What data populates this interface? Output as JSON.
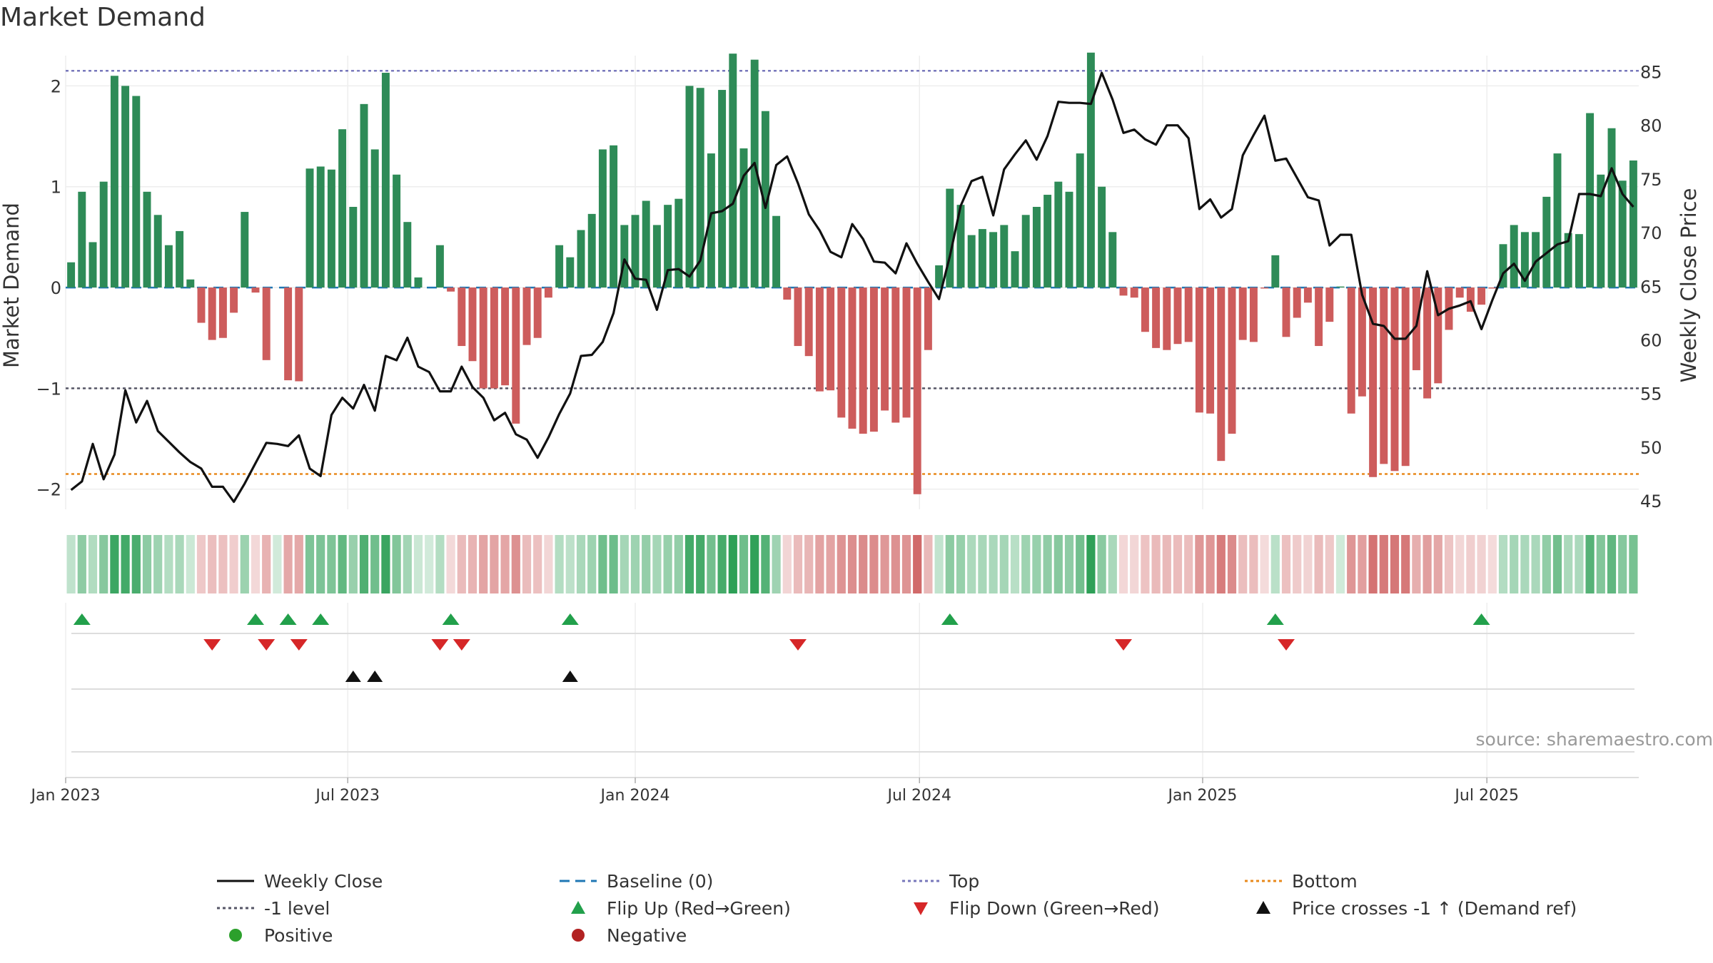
{
  "chart_data": {
    "type": "bar+line",
    "title": "Market Demand",
    "source": "source: sharemaestro.com",
    "ylabel_left": "Market Demand",
    "ylabel_right": "Weekly Close Price",
    "ylim_left": [
      -2.2,
      2.3
    ],
    "ylim_right": [
      44.2,
      86.5
    ],
    "yticks_left": [
      "−2",
      "−1",
      "0",
      "1",
      "2"
    ],
    "yticks_right": [
      "45",
      "50",
      "55",
      "60",
      "65",
      "70",
      "75",
      "80",
      "85"
    ],
    "xticks": [
      "Jan 2023",
      "Jul 2023",
      "Jan 2024",
      "Jul 2024",
      "Jan 2025",
      "Jul 2025"
    ],
    "reference_lines": {
      "top": 2.15,
      "minus1": -1,
      "bottom": -1.85,
      "baseline": 0
    },
    "weeks": 145,
    "demand": [
      0.25,
      0.95,
      0.45,
      1.05,
      2.1,
      2.0,
      1.9,
      0.95,
      0.72,
      0.42,
      0.56,
      0.08,
      -0.35,
      -0.52,
      -0.5,
      -0.25,
      0.75,
      -0.05,
      -0.72,
      0.0,
      -0.92,
      -0.93,
      1.18,
      1.2,
      1.17,
      1.57,
      0.8,
      1.82,
      1.37,
      2.13,
      1.12,
      0.65,
      0.1,
      0.0,
      0.42,
      -0.04,
      -0.58,
      -0.73,
      -1.0,
      -1.0,
      -0.97,
      -1.35,
      -0.57,
      -0.5,
      -0.1,
      0.42,
      0.3,
      0.57,
      0.73,
      1.37,
      1.41,
      0.62,
      0.72,
      0.86,
      0.62,
      0.82,
      0.88,
      2.0,
      1.98,
      1.33,
      1.96,
      2.32,
      1.38,
      2.26,
      1.75,
      0.71,
      -0.12,
      -0.58,
      -0.68,
      -1.03,
      -1.02,
      -1.29,
      -1.4,
      -1.45,
      -1.43,
      -1.22,
      -1.34,
      -1.29,
      -2.05,
      -0.62,
      0.22,
      0.98,
      0.82,
      0.52,
      0.58,
      0.55,
      0.62,
      0.36,
      0.72,
      0.8,
      0.92,
      1.05,
      0.95,
      1.33,
      2.33,
      1.0,
      0.55,
      -0.08,
      -0.1,
      -0.44,
      -0.6,
      -0.62,
      -0.56,
      -0.54,
      -1.24,
      -1.25,
      -1.72,
      -1.45,
      -0.52,
      -0.54,
      -0.01,
      0.32,
      -0.49,
      -0.3,
      -0.15,
      -0.58,
      -0.34,
      0.01,
      -1.25,
      -1.08,
      -1.88,
      -1.75,
      -1.82,
      -1.77,
      -0.82,
      -1.1,
      -0.95,
      -0.42,
      -0.1,
      -0.24,
      -0.17,
      -0.01,
      0.43,
      0.62,
      0.55,
      0.55,
      0.9,
      1.33,
      0.54,
      0.53,
      1.73,
      1.12,
      1.58,
      1.06,
      1.26
    ],
    "price": [
      46,
      46.8,
      50.3,
      47,
      49.3,
      55.3,
      52.3,
      54.3,
      51.5,
      50.5,
      49.5,
      48.6,
      48,
      46.3,
      46.3,
      44.9,
      46.6,
      48.5,
      50.4,
      50.3,
      50.1,
      51.1,
      48,
      47.3,
      53,
      54.6,
      53.6,
      55.8,
      53.4,
      58.5,
      58.1,
      60.2,
      57.5,
      57,
      55.2,
      55.2,
      57.5,
      55.6,
      54.6,
      52.5,
      53.2,
      51.2,
      50.7,
      49,
      50.9,
      53.1,
      55,
      58.5,
      58.6,
      59.8,
      62.5,
      67.5,
      65.7,
      65.6,
      62.8,
      66.5,
      66.6,
      65.9,
      67.4,
      71.8,
      72,
      72.7,
      75.3,
      76.5,
      72.3,
      76.3,
      77.1,
      74.6,
      71.7,
      70.2,
      68.2,
      67.7,
      70.8,
      69.4,
      67.3,
      67.2,
      66.2,
      69,
      67.1,
      65.4,
      63.8,
      67.8,
      72.5,
      74.8,
      75.2,
      71.6,
      75.9,
      77.3,
      78.6,
      76.8,
      79,
      82.2,
      82.1,
      82.1,
      82,
      84.9,
      82.4,
      79.3,
      79.6,
      78.7,
      78.2,
      80,
      80,
      78.8,
      72.2,
      73.1,
      71.4,
      72.2,
      77.2,
      79.1,
      80.9,
      76.7,
      76.9,
      75.1,
      73.3,
      73,
      68.8,
      69.8,
      69.8,
      64.2,
      61.5,
      61.3,
      60.1,
      60.1,
      61.3,
      66.4,
      62.3,
      62.9,
      63.2,
      63.6,
      61,
      63.7,
      66.2,
      67.1,
      65.5,
      67.3,
      68.1,
      68.9,
      69.2,
      73.6,
      73.6,
      73.4,
      76,
      73.6,
      72.4
    ]
  },
  "strips": {
    "flip_up_weeks": [
      1,
      17,
      20,
      23,
      35,
      46,
      81,
      111,
      130
    ],
    "flip_down_weeks": [
      13,
      18,
      21,
      34,
      36,
      67,
      97,
      112
    ],
    "price_cross_weeks": [
      26,
      28,
      46
    ]
  },
  "legend": {
    "weekly_close": "Weekly Close",
    "baseline": "Baseline (0)",
    "top": "Top",
    "bottom": "Bottom",
    "minus1": "-1 level",
    "flip_up": "Flip Up (Red→Green)",
    "flip_down": "Flip Down (Green→Red)",
    "price_cross": "Price crosses -1 ↑ (Demand ref)",
    "positive": "Positive",
    "negative": "Negative"
  },
  "colors": {
    "positive_bar": "#2e8b57",
    "negative_bar": "#cd5c5c",
    "line": "#111111",
    "top_line": "#7777bb",
    "bottom_line": "#e8891c",
    "minus1_line": "#555566",
    "baseline": "#1f77b4",
    "flip_up": "#22a04b",
    "flip_down": "#d62728",
    "cross": "#111111",
    "positive_dot": "#2ca02c",
    "negative_dot": "#b22222"
  }
}
